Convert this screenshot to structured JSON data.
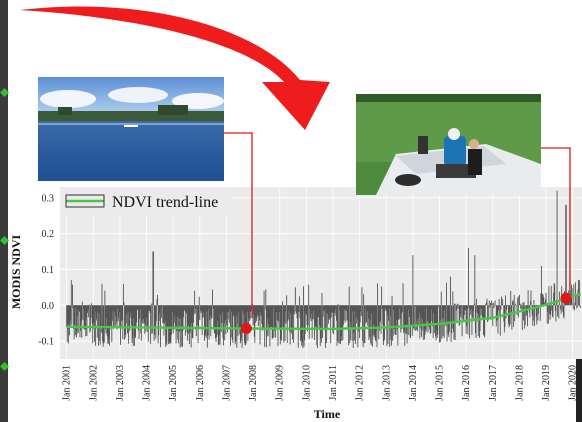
{
  "colors": {
    "arrow": "#ee1c1c",
    "bars": "#555555",
    "trend": "#46c846",
    "marker": "#e01818",
    "panel": "#ebebeb",
    "grid": "#ffffff"
  },
  "chart_data": {
    "type": "bar",
    "title": "",
    "xlabel": "Time",
    "ylabel": "MODIS NDVI",
    "ylim": [
      -0.15,
      0.33
    ],
    "yticks": [
      "0.3",
      "0.2",
      "0.1",
      "0.0",
      "-0.1"
    ],
    "x_tick_labels": [
      "Jan 2001",
      "Jan 2002",
      "Jan 2003",
      "Jan 2004",
      "Jan 2005",
      "Jan 2006",
      "Jan 2007",
      "Jan 2008",
      "Jan 2009",
      "Jan 2010",
      "Jan 2011",
      "Jan 2012",
      "Jan 2013",
      "Jan 2014",
      "Jan 2015",
      "Jan 2016",
      "Jan 2017",
      "Jan 2018",
      "Jan 2019",
      "Jan 2020"
    ],
    "grid": true,
    "legend": {
      "label": "NDVI trend-line",
      "position": "top-left"
    },
    "series": [
      {
        "name": "MODIS NDVI",
        "note_values": "8-day NDVI anomaly bars around zero, mostly between -0.12 and 0.03 with spikes up to ~0.32 in 2019",
        "values_sample": [
          {
            "date": "2001-03",
            "y": 0.07
          },
          {
            "date": "2002-05",
            "y": 0.06
          },
          {
            "date": "2004-04",
            "y": 0.15
          },
          {
            "date": "2008-06",
            "y": 0.04
          },
          {
            "date": "2009-08",
            "y": 0.05
          },
          {
            "date": "2012-02",
            "y": 0.05
          },
          {
            "date": "2014-01",
            "y": 0.14
          },
          {
            "date": "2015-06",
            "y": 0.08
          },
          {
            "date": "2016-02",
            "y": 0.16
          },
          {
            "date": "2016-05",
            "y": 0.14
          },
          {
            "date": "2017-09",
            "y": 0.04
          },
          {
            "date": "2018-11",
            "y": 0.11
          },
          {
            "date": "2019-06",
            "y": 0.32
          },
          {
            "date": "2019-10",
            "y": 0.28
          }
        ]
      },
      {
        "name": "NDVI trend-line",
        "points": [
          {
            "date": "2001-01",
            "y": -0.06
          },
          {
            "date": "2004-01",
            "y": -0.062
          },
          {
            "date": "2008-01",
            "y": -0.065
          },
          {
            "date": "2011-01",
            "y": -0.066
          },
          {
            "date": "2013-01",
            "y": -0.062
          },
          {
            "date": "2015-01",
            "y": -0.052
          },
          {
            "date": "2017-01",
            "y": -0.035
          },
          {
            "date": "2018-06",
            "y": -0.01
          },
          {
            "date": "2019-06",
            "y": 0.01
          },
          {
            "date": "2020-03",
            "y": 0.03
          }
        ]
      }
    ],
    "highlighted_points": [
      {
        "date": "2007-10",
        "y": -0.065
      },
      {
        "date": "2019-10",
        "y": 0.02
      }
    ]
  }
}
